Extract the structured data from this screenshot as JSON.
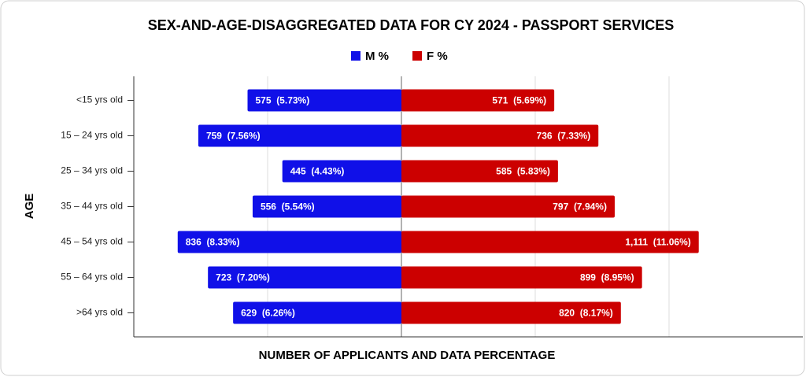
{
  "chart_data": {
    "type": "butterfly",
    "title": "SEX-AND-AGE-DISAGGREGATED DATA FOR CY 2024 - PASSPORT SERVICES",
    "xlabel": "NUMBER OF APPLICANTS  AND DATA PERCENTAGE",
    "ylabel": "AGE",
    "categories": [
      "<15 yrs old",
      "15 – 24 yrs old",
      "25 – 34 yrs old",
      "35 – 44 yrs old",
      "45 – 54 yrs old",
      "55 – 64 yrs old",
      ">64 yrs old"
    ],
    "series": [
      {
        "name": "M %",
        "color": "#1010e8",
        "side": "left",
        "values": [
          575,
          759,
          445,
          556,
          836,
          723,
          629
        ],
        "value_labels": [
          "575  (5.73%)",
          "759  (7.56%)",
          "445  (4.43%)",
          "556  (5.54%)",
          "836  (8.33%)",
          "723  (7.20%)",
          "629  (6.26%)"
        ]
      },
      {
        "name": "F %",
        "color": "#cc0000",
        "side": "right",
        "values": [
          571,
          736,
          585,
          797,
          1111,
          899,
          820
        ],
        "value_labels": [
          "571  (5.69%)",
          "736  (7.33%)",
          "585  (5.83%)",
          "797  (7.94%)",
          "1,111  (11.06%)",
          "899  (8.95%)",
          "820  (8.17%)"
        ]
      }
    ],
    "xlim": [
      -1000,
      1500
    ],
    "xticks": [
      -1000,
      -500,
      0,
      500,
      1000
    ],
    "grid": true
  }
}
